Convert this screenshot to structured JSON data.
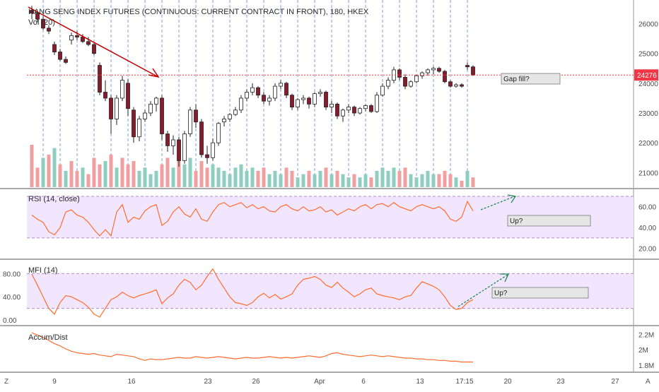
{
  "header": {
    "title": "HANG SENG INDEX FUTURES (CONTINUOUS: CURRENT CONTRACT IN FRONT), 180, HKEX",
    "vol_label": "Vol (20)"
  },
  "colors": {
    "up_candle": "#ffffff",
    "down_candle": "#8b1a2c",
    "candle_outline": "#222222",
    "vol_up": "#8fcfc2",
    "vol_down": "#f0a0a0",
    "indicator_line": "#ff6d2e",
    "band_fill": "#f2e6ff",
    "band_border": "#b18ad0",
    "session_lines": "#4f7be0",
    "trend_arrow_down": "#c00000",
    "trend_arrow_up": "#1f8a55",
    "price_line": "#ff3b3b",
    "price_badge": "#f23645",
    "note_box": "#e6e6e6"
  },
  "chart_data": {
    "type": "candlestick",
    "title": "HANG SENG INDEX FUTURES (CONTINUOUS: CURRENT CONTRACT IN FRONT), 180, HKEX",
    "ohlc": [
      [
        26450,
        26600,
        26150,
        26350
      ],
      [
        26350,
        26400,
        26050,
        26150
      ],
      [
        26150,
        26250,
        25800,
        25850
      ],
      [
        25850,
        25950,
        25650,
        25750
      ],
      [
        25300,
        25400,
        24950,
        25050
      ],
      [
        25050,
        25150,
        24750,
        24800
      ],
      [
        24800,
        24900,
        24650,
        24700
      ],
      [
        25450,
        25700,
        25300,
        25600
      ],
      [
        25600,
        25750,
        25450,
        25550
      ],
      [
        25550,
        25650,
        25350,
        25400
      ],
      [
        25400,
        25550,
        25250,
        25300
      ],
      [
        25300,
        25350,
        24950,
        25000
      ],
      [
        24600,
        24700,
        23600,
        23700
      ],
      [
        23700,
        24100,
        23400,
        23500
      ],
      [
        23500,
        23600,
        22300,
        22800
      ],
      [
        22800,
        23600,
        22600,
        23500
      ],
      [
        23500,
        24250,
        23400,
        24100
      ],
      [
        24000,
        24150,
        22900,
        23150
      ],
      [
        23100,
        23200,
        22000,
        22200
      ],
      [
        22200,
        22900,
        22050,
        22800
      ],
      [
        22800,
        23100,
        22700,
        23000
      ],
      [
        23000,
        23400,
        22900,
        23300
      ],
      [
        23300,
        23550,
        23050,
        23500
      ],
      [
        23500,
        23600,
        22100,
        22300
      ],
      [
        22300,
        22400,
        21700,
        21900
      ],
      [
        21900,
        22250,
        21600,
        22100
      ],
      [
        22100,
        22200,
        21200,
        21400
      ],
      [
        21400,
        22400,
        21300,
        22300
      ],
      [
        22300,
        23200,
        22200,
        23100
      ],
      [
        23100,
        23300,
        22500,
        22700
      ],
      [
        22700,
        22800,
        21500,
        21600
      ],
      [
        21600,
        21900,
        21300,
        21500
      ],
      [
        21500,
        22150,
        21400,
        22000
      ],
      [
        22000,
        22700,
        21900,
        22650
      ],
      [
        22700,
        22900,
        22550,
        22800
      ],
      [
        22800,
        23000,
        22700,
        22950
      ],
      [
        22950,
        23200,
        22900,
        23100
      ],
      [
        23100,
        23600,
        23000,
        23500
      ],
      [
        23500,
        23800,
        23400,
        23700
      ],
      [
        23700,
        24000,
        23600,
        23850
      ],
      [
        23850,
        23900,
        23500,
        23600
      ],
      [
        23600,
        23700,
        23300,
        23400
      ],
      [
        23400,
        23600,
        23250,
        23500
      ],
      [
        23500,
        24000,
        23400,
        23900
      ],
      [
        23900,
        24100,
        23800,
        24000
      ],
      [
        24000,
        24050,
        23500,
        23600
      ],
      [
        23600,
        23650,
        23100,
        23200
      ],
      [
        23200,
        23500,
        23100,
        23450
      ],
      [
        23450,
        23600,
        23300,
        23500
      ],
      [
        23500,
        23550,
        23150,
        23300
      ],
      [
        23300,
        23700,
        23200,
        23650
      ],
      [
        23650,
        23800,
        23550,
        23700
      ],
      [
        23700,
        23750,
        23100,
        23200
      ],
      [
        23200,
        23400,
        23000,
        23300
      ],
      [
        23300,
        23350,
        22800,
        22900
      ],
      [
        22900,
        23150,
        22700,
        23100
      ],
      [
        23100,
        23300,
        23000,
        23200
      ],
      [
        23200,
        23250,
        22900,
        23000
      ],
      [
        23000,
        23200,
        22950,
        23150
      ],
      [
        23150,
        23300,
        23050,
        23250
      ],
      [
        23250,
        23300,
        23000,
        23050
      ],
      [
        23050,
        23700,
        23000,
        23600
      ],
      [
        23600,
        24000,
        23550,
        23900
      ],
      [
        23900,
        24200,
        23800,
        24100
      ],
      [
        24100,
        24550,
        24000,
        24450
      ],
      [
        24450,
        24500,
        24100,
        24200
      ],
      [
        24200,
        24300,
        23800,
        23900
      ],
      [
        23900,
        24100,
        23850,
        24050
      ],
      [
        24050,
        24300,
        24000,
        24250
      ],
      [
        24250,
        24400,
        24150,
        24350
      ],
      [
        24350,
        24500,
        24250,
        24450
      ],
      [
        24450,
        24550,
        24300,
        24500
      ],
      [
        24500,
        24550,
        24350,
        24400
      ],
      [
        24400,
        24450,
        24000,
        24050
      ],
      [
        24050,
        24100,
        23850,
        23900
      ],
      [
        23900,
        24000,
        23850,
        23950
      ],
      [
        23950,
        24000,
        23850,
        23900
      ],
      [
        24600,
        24700,
        24450,
        24550
      ],
      [
        24550,
        24600,
        24250,
        24276
      ]
    ],
    "volume": [
      [
        false,
        1.3
      ],
      [
        false,
        0.6
      ],
      [
        true,
        0.9
      ],
      [
        false,
        1.0
      ],
      [
        true,
        1.2
      ],
      [
        false,
        0.7
      ],
      [
        true,
        0.5
      ],
      [
        false,
        0.8
      ],
      [
        false,
        0.5
      ],
      [
        true,
        0.6
      ],
      [
        false,
        0.4
      ],
      [
        false,
        0.9
      ],
      [
        false,
        0.7
      ],
      [
        true,
        0.8
      ],
      [
        false,
        1.0
      ],
      [
        true,
        0.6
      ],
      [
        false,
        0.9
      ],
      [
        false,
        0.7
      ],
      [
        false,
        0.8
      ],
      [
        true,
        0.5
      ],
      [
        true,
        0.6
      ],
      [
        true,
        0.4
      ],
      [
        true,
        0.5
      ],
      [
        false,
        0.7
      ],
      [
        false,
        0.9
      ],
      [
        true,
        0.6
      ],
      [
        false,
        0.8
      ],
      [
        true,
        0.7
      ],
      [
        true,
        0.9
      ],
      [
        false,
        0.5
      ],
      [
        false,
        0.8
      ],
      [
        false,
        0.6
      ],
      [
        true,
        0.7
      ],
      [
        true,
        0.6
      ],
      [
        true,
        0.5
      ],
      [
        true,
        0.4
      ],
      [
        true,
        0.6
      ],
      [
        true,
        0.7
      ],
      [
        true,
        0.5
      ],
      [
        true,
        0.6
      ],
      [
        false,
        0.5
      ],
      [
        false,
        0.6
      ],
      [
        true,
        0.4
      ],
      [
        true,
        0.5
      ],
      [
        true,
        0.4
      ],
      [
        false,
        0.6
      ],
      [
        false,
        0.5
      ],
      [
        true,
        0.3
      ],
      [
        true,
        0.4
      ],
      [
        false,
        0.5
      ],
      [
        true,
        0.4
      ],
      [
        true,
        0.5
      ],
      [
        false,
        0.6
      ],
      [
        true,
        0.4
      ],
      [
        false,
        0.5
      ],
      [
        true,
        0.4
      ],
      [
        true,
        0.3
      ],
      [
        false,
        0.4
      ],
      [
        true,
        0.3
      ],
      [
        true,
        0.4
      ],
      [
        false,
        0.3
      ],
      [
        true,
        0.5
      ],
      [
        true,
        0.6
      ],
      [
        true,
        0.5
      ],
      [
        true,
        0.6
      ],
      [
        false,
        0.5
      ],
      [
        false,
        0.6
      ],
      [
        true,
        0.4
      ],
      [
        true,
        0.3
      ],
      [
        true,
        0.4
      ],
      [
        true,
        0.5
      ],
      [
        true,
        0.4
      ],
      [
        false,
        0.4
      ],
      [
        false,
        0.5
      ],
      [
        false,
        0.4
      ],
      [
        true,
        0.3
      ],
      [
        false,
        0.2
      ],
      [
        true,
        0.5
      ],
      [
        false,
        0.3
      ]
    ],
    "rsi": [
      52,
      48,
      45,
      36,
      33,
      40,
      55,
      57,
      52,
      50,
      45,
      38,
      32,
      38,
      32,
      55,
      62,
      45,
      50,
      48,
      56,
      60,
      62,
      42,
      46,
      55,
      60,
      53,
      50,
      58,
      48,
      46,
      55,
      62,
      64,
      60,
      62,
      64,
      59,
      62,
      58,
      60,
      56,
      55,
      60,
      62,
      58,
      56,
      60,
      56,
      57,
      60,
      55,
      57,
      52,
      55,
      58,
      56,
      60,
      62,
      58,
      62,
      63,
      60,
      64,
      60,
      58,
      56,
      60,
      62,
      60,
      58,
      60,
      56,
      48,
      46,
      50,
      65,
      56
    ],
    "mfi": [
      79,
      60,
      40,
      20,
      10,
      30,
      42,
      40,
      35,
      30,
      22,
      10,
      5,
      20,
      35,
      40,
      48,
      42,
      38,
      42,
      45,
      48,
      52,
      28,
      38,
      45,
      60,
      70,
      65,
      52,
      60,
      75,
      88,
      70,
      55,
      40,
      30,
      28,
      25,
      30,
      40,
      46,
      38,
      44,
      36,
      40,
      45,
      60,
      70,
      72,
      75,
      70,
      60,
      56,
      65,
      55,
      48,
      40,
      45,
      52,
      55,
      45,
      42,
      40,
      38,
      35,
      40,
      42,
      55,
      66,
      62,
      58,
      52,
      40,
      25,
      18,
      20,
      30,
      35
    ],
    "ad": [
      2.22,
      2.19,
      2.16,
      2.12,
      2.08,
      2.05,
      2.01,
      1.98,
      1.96,
      1.95,
      1.94,
      1.95,
      1.93,
      1.92,
      1.91,
      1.94,
      1.93,
      1.92,
      1.91,
      1.88,
      1.86,
      1.88,
      1.87,
      1.87,
      1.88,
      1.89,
      1.9,
      1.89,
      1.89,
      1.91,
      1.9,
      1.89,
      1.9,
      1.91,
      1.9,
      1.89,
      1.88,
      1.89,
      1.9,
      1.89,
      1.89,
      1.9,
      1.91,
      1.9,
      1.89,
      1.9,
      1.89,
      1.9,
      1.91,
      1.92,
      1.91,
      1.9,
      1.92,
      1.95,
      1.96,
      1.94,
      1.93,
      1.92,
      1.91,
      1.92,
      1.93,
      1.92,
      1.91,
      1.92,
      1.91,
      1.9,
      1.89,
      1.89,
      1.88,
      1.88,
      1.87,
      1.87,
      1.86,
      1.86,
      1.85,
      1.85,
      1.84,
      1.84,
      1.84
    ],
    "price_ticks": [
      "26000",
      "25000",
      "24000",
      "23000",
      "22000",
      "21000"
    ],
    "rsi_ticks": [
      "60.00",
      "40.00",
      "20.00"
    ],
    "mfi_ticks": [
      "80.00",
      "40.00",
      "0.00"
    ],
    "ad_ticks": [
      "2.2M",
      "2M",
      "1.8M"
    ],
    "x_ticks": [
      "9",
      "16",
      "23",
      "26",
      "Apr",
      "6",
      "13",
      "17:15",
      "20",
      "23",
      "27"
    ],
    "last_price": "24276",
    "panes": {
      "rsi_title": "RSI (14, close)",
      "mfi_title": "MFI (14)",
      "ad_title": "Accum/Dist"
    },
    "annotations": {
      "gap_fill": "Gap fill?",
      "rsi_up": "Up?",
      "mfi_up": "Up?"
    },
    "bottom_left": "Z",
    "bottom_right": "A"
  }
}
